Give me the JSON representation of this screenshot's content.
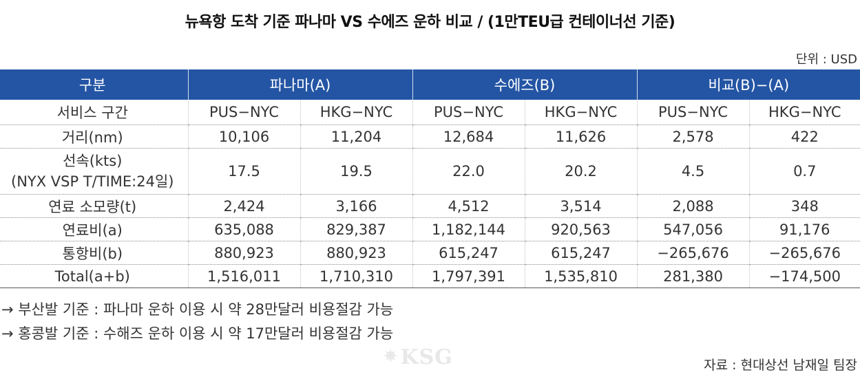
{
  "title": "뉴욕항 도착 기준 파나마 VS 수에즈 운하 비교 / (1만TEU급 컨테이너선 기준)",
  "unit": "단위 : USD",
  "header": {
    "col0": "구분",
    "panama": "파나마(A)",
    "suez": "수에즈(B)",
    "compare": "비교(B)−(A)"
  },
  "subheader": {
    "label": "서비스 구간",
    "cols": [
      "PUS−NYC",
      "HKG−NYC",
      "PUS−NYC",
      "HKG−NYC",
      "PUS−NYC",
      "HKG−NYC"
    ]
  },
  "rows": [
    {
      "label": "거리(nm)",
      "values": [
        "10,106",
        "11,204",
        "12,684",
        "11,626",
        "2,578",
        "422"
      ]
    },
    {
      "label": "선속(kts)",
      "label2": "(NYX VSP T/TIME:24일)",
      "values": [
        "17.5",
        "19.5",
        "22.0",
        "20.2",
        "4.5",
        "0.7"
      ]
    },
    {
      "label": "연료 소모량(t)",
      "values": [
        "2,424",
        "3,166",
        "4,512",
        "3,514",
        "2,088",
        "348"
      ]
    },
    {
      "label": "연료비(a)",
      "values": [
        "635,088",
        "829,387",
        "1,182,144",
        "920,563",
        "547,056",
        "91,176"
      ]
    },
    {
      "label": "통항비(b)",
      "values": [
        "880,923",
        "880,923",
        "615,247",
        "615,247",
        "−265,676",
        "−265,676"
      ]
    },
    {
      "label": "Total(a+b)",
      "values": [
        "1,516,011",
        "1,710,310",
        "1,797,391",
        "1,535,810",
        "281,380",
        "−174,500"
      ]
    }
  ],
  "notes": [
    "→ 부산발 기준 : 파나마 운하 이용 시 약 28만달러 비용절감 가능",
    "→ 홍콩발 기준 : 수해즈 운하 이용 시 약 17만달러 비용절감 가능"
  ],
  "watermark": "KSG",
  "source": "자료 : 현대상선 남재일 팀장"
}
